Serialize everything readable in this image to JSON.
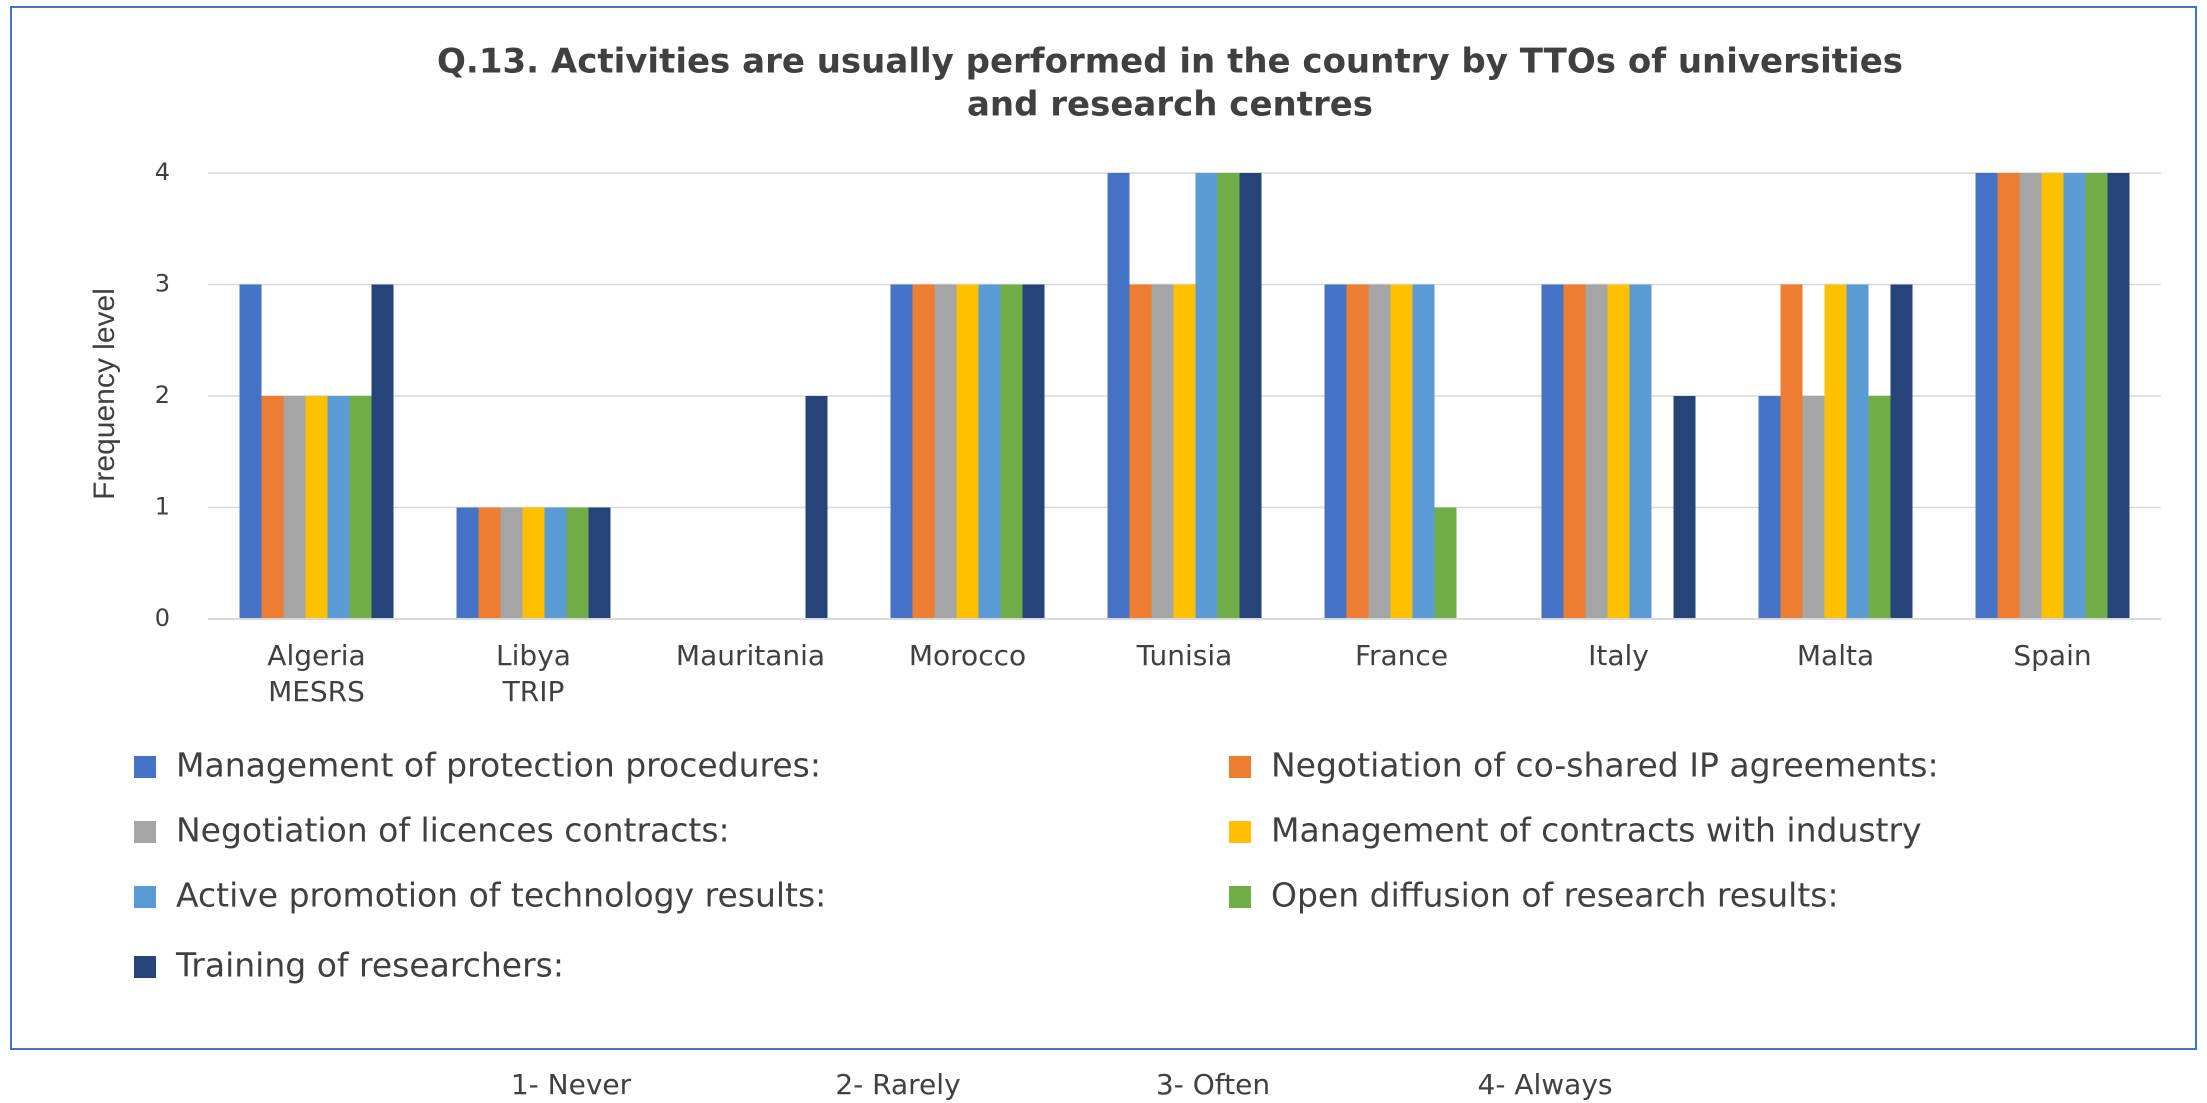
{
  "chart_data": {
    "type": "bar",
    "title": [
      "Q.13.  Activities are usually performed in the country by TTOs of universities",
      "and research centres"
    ],
    "y_label": "Frequency level",
    "categories": [
      "Algeria MESRS",
      "Libya TRIP",
      "Mauritania",
      "Morocco",
      "Tunisia",
      "France",
      "Italy",
      "Malta",
      "Spain"
    ],
    "series": [
      {
        "name": "Management of protection procedures:",
        "color": "#4472c4",
        "values": [
          3,
          1,
          0,
          3,
          4,
          3,
          3,
          2,
          4
        ]
      },
      {
        "name": "Negotiation of co-shared IP agreements:",
        "color": "#ed7d31",
        "values": [
          2,
          1,
          0,
          3,
          3,
          3,
          3,
          3,
          4
        ]
      },
      {
        "name": "Negotiation of licences contracts:",
        "color": "#a5a5a5",
        "values": [
          2,
          1,
          0,
          3,
          3,
          3,
          3,
          2,
          4
        ]
      },
      {
        "name": "Management of contracts with industry",
        "color": "#ffc000",
        "values": [
          2,
          1,
          0,
          3,
          3,
          3,
          3,
          3,
          4
        ]
      },
      {
        "name": "Active promotion of technology results:",
        "color": "#5b9bd5",
        "values": [
          2,
          1,
          0,
          3,
          4,
          3,
          3,
          3,
          4
        ]
      },
      {
        "name": "Open diffusion of research results:",
        "color": "#70ad47",
        "values": [
          2,
          1,
          0,
          3,
          4,
          1,
          0,
          2,
          4
        ]
      },
      {
        "name": "Training of researchers:",
        "color": "#264478",
        "values": [
          3,
          1,
          2,
          3,
          4,
          0,
          2,
          3,
          4
        ]
      }
    ],
    "ylim": [
      0,
      4
    ],
    "yticks": [
      0,
      1,
      2,
      3,
      4
    ],
    "grid": true,
    "scale_labels": [
      "1- Never",
      "2- Rarely",
      "3- Often",
      "4- Always"
    ]
  }
}
